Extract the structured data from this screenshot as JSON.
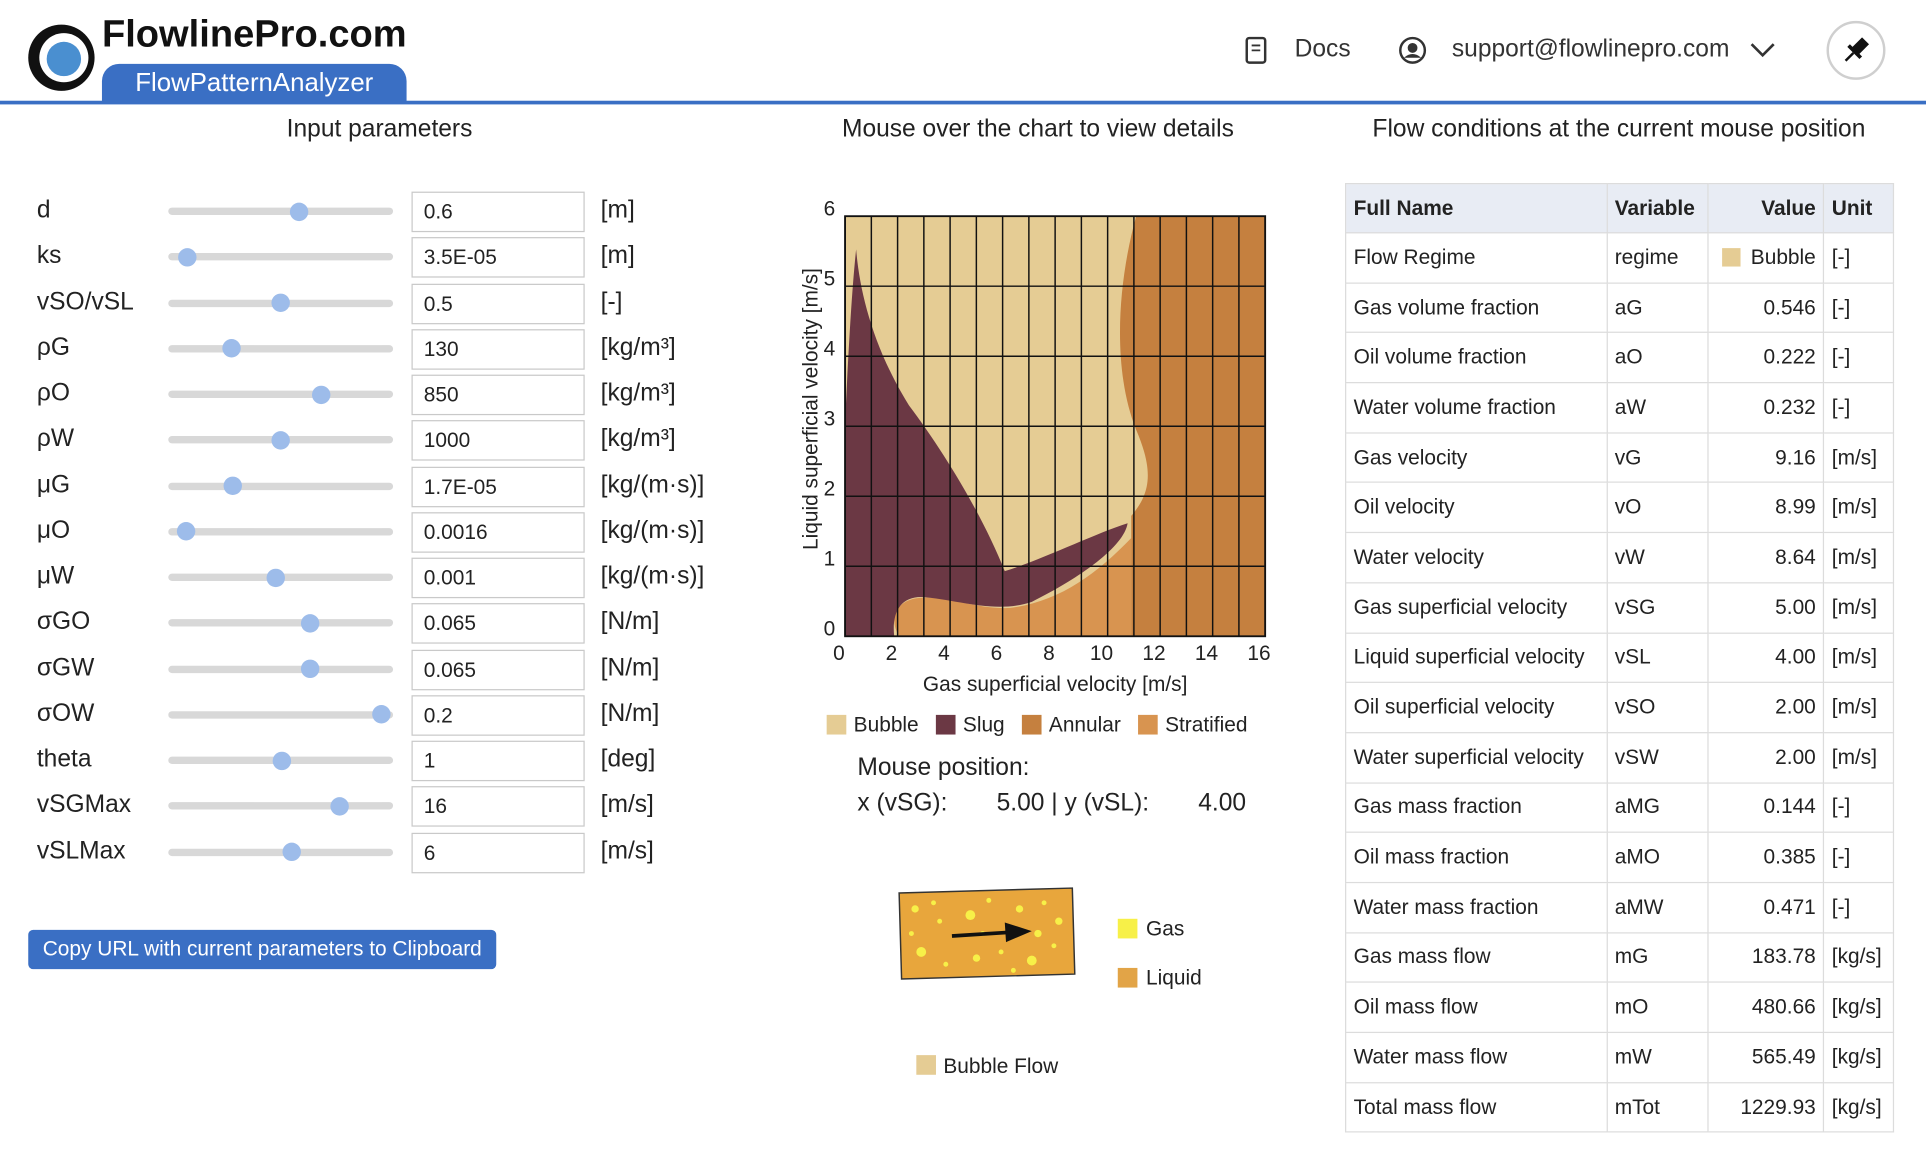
{
  "header": {
    "brand": "FlowlinePro.com",
    "app": "FlowPatternAnalyzer",
    "docs": "Docs",
    "account": "support@flowlinepro.com"
  },
  "inputs": {
    "title": "Input parameters",
    "params": [
      {
        "label": "d",
        "value": "0.6",
        "unit": "[m]"
      },
      {
        "label": "ks",
        "value": "3.5E-05",
        "unit": "[m]"
      },
      {
        "label": "vSO/vSL",
        "value": "0.5",
        "unit": "[-]"
      },
      {
        "label": "ρG",
        "value": "130",
        "unit": "[kg/m³]"
      },
      {
        "label": "ρO",
        "value": "850",
        "unit": "[kg/m³]"
      },
      {
        "label": "ρW",
        "value": "1000",
        "unit": "[kg/m³]"
      },
      {
        "label": "μG",
        "value": "1.7E-05",
        "unit": "[kg/(m·s)]"
      },
      {
        "label": "μO",
        "value": "0.0016",
        "unit": "[kg/(m·s)]"
      },
      {
        "label": "μW",
        "value": "0.001",
        "unit": "[kg/(m·s)]"
      },
      {
        "label": "σGO",
        "value": "0.065",
        "unit": "[N/m]"
      },
      {
        "label": "σGW",
        "value": "0.065",
        "unit": "[N/m]"
      },
      {
        "label": "σOW",
        "value": "0.2",
        "unit": "[N/m]"
      },
      {
        "label": "theta",
        "value": "1",
        "unit": "[deg]"
      },
      {
        "label": "vSGMax",
        "value": "16",
        "unit": "[m/s]"
      },
      {
        "label": "vSLMax",
        "value": "6",
        "unit": "[m/s]"
      }
    ],
    "copy_button": "Copy URL with current parameters to Clipboard"
  },
  "chart_data": {
    "type": "flow_map",
    "title": "Mouse over the chart to view details",
    "xlabel": "Gas superficial velocity [m/s]",
    "ylabel": "Liquid superficial velocity [m/s]",
    "xlim": [
      0,
      16
    ],
    "ylim": [
      0,
      6
    ],
    "xticks": [
      0,
      2,
      4,
      6,
      8,
      10,
      12,
      14,
      16
    ],
    "yticks": [
      0,
      1,
      2,
      3,
      4,
      5,
      6
    ],
    "grid": true,
    "legend": [
      {
        "name": "Bubble",
        "color": "#e5cc94"
      },
      {
        "name": "Slug",
        "color": "#6b3844"
      },
      {
        "name": "Annular",
        "color": "#c5803f"
      },
      {
        "name": "Stratified",
        "color": "#d89450"
      }
    ]
  },
  "mouse": {
    "title": "Mouse position:",
    "x_label": "x (vSG):",
    "x_value": "5.00",
    "separator": "|",
    "y_label": "y (vSL):",
    "y_value": "4.00"
  },
  "illustration": {
    "legend": [
      {
        "name": "Gas",
        "color": "#f7f048"
      },
      {
        "name": "Liquid",
        "color": "#e2a447"
      }
    ],
    "caption": "Bubble Flow"
  },
  "conditions": {
    "title": "Flow conditions at the current mouse position",
    "columns": [
      "Full Name",
      "Variable",
      "Value",
      "Unit"
    ],
    "rows": [
      [
        "Flow Regime",
        "regime",
        "Bubble",
        "[-]"
      ],
      [
        "Gas volume fraction",
        "aG",
        "0.546",
        "[-]"
      ],
      [
        "Oil volume fraction",
        "aO",
        "0.222",
        "[-]"
      ],
      [
        "Water volume fraction",
        "aW",
        "0.232",
        "[-]"
      ],
      [
        "Gas velocity",
        "vG",
        "9.16",
        "[m/s]"
      ],
      [
        "Oil velocity",
        "vO",
        "8.99",
        "[m/s]"
      ],
      [
        "Water velocity",
        "vW",
        "8.64",
        "[m/s]"
      ],
      [
        "Gas superficial velocity",
        "vSG",
        "5.00",
        "[m/s]"
      ],
      [
        "Liquid superficial velocity",
        "vSL",
        "4.00",
        "[m/s]"
      ],
      [
        "Oil superficial velocity",
        "vSO",
        "2.00",
        "[m/s]"
      ],
      [
        "Water superficial velocity",
        "vSW",
        "2.00",
        "[m/s]"
      ],
      [
        "Gas mass fraction",
        "aMG",
        "0.144",
        "[-]"
      ],
      [
        "Oil mass fraction",
        "aMO",
        "0.385",
        "[-]"
      ],
      [
        "Water mass fraction",
        "aMW",
        "0.471",
        "[-]"
      ],
      [
        "Gas mass flow",
        "mG",
        "183.78",
        "[kg/s]"
      ],
      [
        "Oil mass flow",
        "mO",
        "480.66",
        "[kg/s]"
      ],
      [
        "Water mass flow",
        "mW",
        "565.49",
        "[kg/s]"
      ],
      [
        "Total mass flow",
        "mTot",
        "1229.93",
        "[kg/s]"
      ]
    ]
  }
}
